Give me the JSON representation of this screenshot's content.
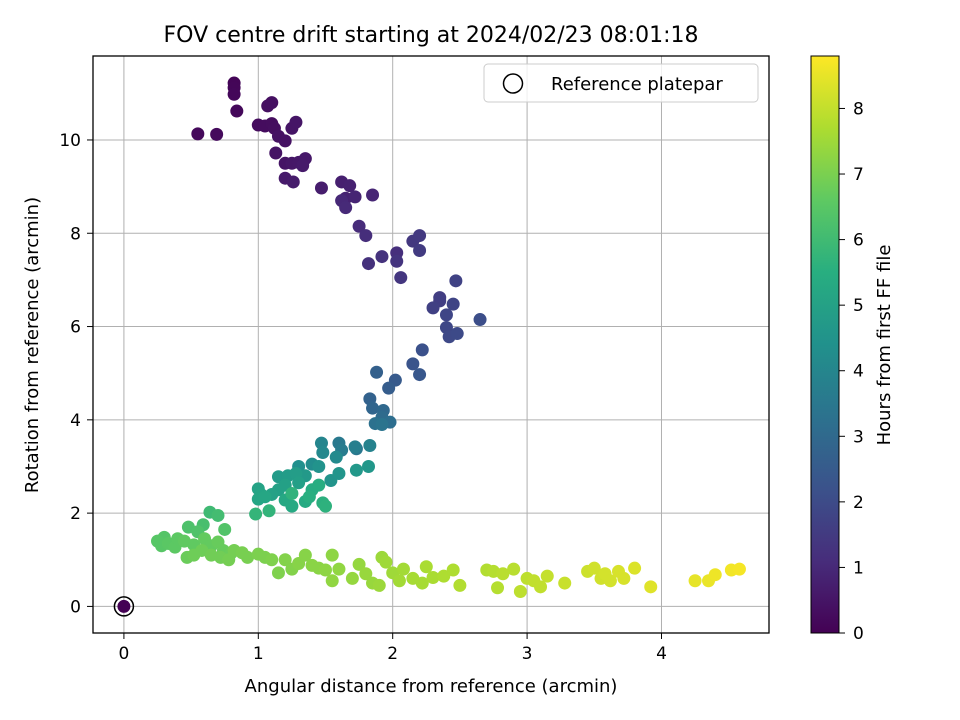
{
  "chart_data": {
    "type": "scatter",
    "title": "FOV centre drift starting at 2024/02/23 08:01:18",
    "xlabel": "Angular distance from reference (arcmin)",
    "ylabel": "Rotation from reference (arcmin)",
    "xlim": [
      -0.23,
      4.8
    ],
    "ylim": [
      -0.57,
      11.8
    ],
    "xticks": [
      "0",
      "1",
      "2",
      "3",
      "4"
    ],
    "yticks": [
      "0",
      "2",
      "4",
      "6",
      "8",
      "10"
    ],
    "grid": true,
    "legend": {
      "placement": "top-right",
      "entries": [
        "Reference platepar"
      ]
    },
    "reference_point": {
      "x": 0,
      "y": 0,
      "hours": 0
    },
    "colorbar": {
      "label": "Hours from first FF file",
      "range": [
        0,
        8.8
      ],
      "ticks": [
        "0",
        "1",
        "2",
        "3",
        "4",
        "5",
        "6",
        "7",
        "8"
      ],
      "colormap": "viridis"
    },
    "points": [
      [
        0.82,
        11.22,
        0.1
      ],
      [
        0.82,
        11.12,
        0.12
      ],
      [
        0.82,
        10.98,
        0.15
      ],
      [
        0.84,
        10.62,
        0.18
      ],
      [
        0.55,
        10.13,
        0.2
      ],
      [
        0.69,
        10.12,
        0.22
      ],
      [
        1.0,
        10.32,
        0.25
      ],
      [
        1.05,
        10.3,
        0.28
      ],
      [
        1.1,
        10.35,
        0.3
      ],
      [
        1.12,
        10.25,
        0.33
      ],
      [
        1.07,
        10.73,
        0.35
      ],
      [
        1.1,
        10.8,
        0.37
      ],
      [
        1.15,
        10.08,
        0.4
      ],
      [
        1.2,
        9.98,
        0.42
      ],
      [
        1.13,
        9.72,
        0.45
      ],
      [
        1.2,
        9.5,
        0.48
      ],
      [
        1.25,
        10.25,
        0.5
      ],
      [
        1.28,
        10.38,
        0.52
      ],
      [
        1.25,
        9.5,
        0.55
      ],
      [
        1.3,
        9.52,
        0.58
      ],
      [
        1.35,
        9.6,
        0.6
      ],
      [
        1.33,
        9.45,
        0.63
      ],
      [
        1.2,
        9.18,
        0.65
      ],
      [
        1.26,
        9.1,
        0.68
      ],
      [
        1.47,
        8.97,
        0.72
      ],
      [
        1.62,
        9.1,
        0.78
      ],
      [
        1.68,
        9.02,
        0.82
      ],
      [
        1.65,
        8.75,
        0.85
      ],
      [
        1.72,
        8.78,
        0.9
      ],
      [
        1.85,
        8.82,
        0.95
      ],
      [
        1.62,
        8.7,
        1.0
      ],
      [
        1.65,
        8.55,
        1.05
      ],
      [
        1.75,
        8.15,
        1.1
      ],
      [
        1.8,
        7.95,
        1.15
      ],
      [
        2.03,
        7.58,
        1.2
      ],
      [
        1.82,
        7.35,
        1.25
      ],
      [
        1.92,
        7.5,
        1.3
      ],
      [
        2.03,
        7.4,
        1.35
      ],
      [
        2.06,
        7.05,
        1.4
      ],
      [
        2.15,
        7.83,
        1.45
      ],
      [
        2.2,
        7.95,
        1.5
      ],
      [
        2.2,
        7.63,
        1.55
      ],
      [
        2.35,
        6.62,
        1.6
      ],
      [
        2.35,
        6.55,
        1.65
      ],
      [
        2.3,
        6.4,
        1.7
      ],
      [
        2.47,
        6.98,
        1.75
      ],
      [
        2.45,
        6.48,
        1.8
      ],
      [
        2.4,
        6.25,
        1.85
      ],
      [
        2.4,
        5.98,
        1.9
      ],
      [
        2.42,
        5.78,
        1.95
      ],
      [
        2.48,
        5.85,
        2.0
      ],
      [
        2.65,
        6.15,
        2.1
      ],
      [
        2.22,
        5.5,
        2.2
      ],
      [
        2.15,
        5.2,
        2.3
      ],
      [
        2.2,
        4.97,
        2.4
      ],
      [
        2.02,
        4.85,
        2.5
      ],
      [
        1.97,
        4.68,
        2.6
      ],
      [
        1.88,
        5.02,
        2.7
      ],
      [
        1.83,
        4.45,
        2.8
      ],
      [
        1.85,
        4.25,
        2.9
      ],
      [
        1.93,
        4.2,
        3.0
      ],
      [
        1.92,
        4.05,
        3.1
      ],
      [
        1.98,
        3.95,
        3.2
      ],
      [
        1.87,
        3.92,
        3.3
      ],
      [
        1.92,
        3.9,
        3.4
      ],
      [
        1.73,
        3.38,
        3.5
      ],
      [
        1.6,
        3.5,
        3.6
      ],
      [
        1.62,
        3.35,
        3.7
      ],
      [
        1.72,
        3.42,
        3.8
      ],
      [
        1.83,
        3.45,
        3.9
      ],
      [
        1.47,
        3.5,
        4.0
      ],
      [
        1.48,
        3.3,
        4.1
      ],
      [
        1.58,
        3.2,
        4.2
      ],
      [
        1.4,
        3.05,
        4.3
      ],
      [
        1.3,
        3.0,
        4.4
      ],
      [
        1.45,
        3.0,
        4.5
      ],
      [
        1.54,
        2.7,
        4.55
      ],
      [
        1.6,
        2.85,
        4.6
      ],
      [
        1.82,
        3.0,
        4.65
      ],
      [
        1.73,
        2.92,
        4.7
      ],
      [
        1.35,
        2.8,
        4.75
      ],
      [
        1.15,
        2.78,
        4.8
      ],
      [
        1.22,
        2.8,
        4.85
      ],
      [
        1.28,
        2.85,
        4.9
      ],
      [
        1.3,
        2.65,
        4.95
      ],
      [
        1.2,
        2.6,
        5.0
      ],
      [
        1.15,
        2.5,
        5.0
      ],
      [
        1.1,
        2.4,
        5.05
      ],
      [
        1.0,
        2.52,
        5.1
      ],
      [
        1.02,
        2.4,
        5.15
      ],
      [
        1.0,
        2.3,
        5.2
      ],
      [
        1.05,
        2.35,
        5.25
      ],
      [
        1.2,
        2.28,
        5.3
      ],
      [
        1.25,
        2.15,
        5.35
      ],
      [
        1.35,
        2.25,
        5.4
      ],
      [
        1.4,
        2.5,
        5.45
      ],
      [
        1.45,
        2.6,
        5.5
      ],
      [
        1.38,
        2.35,
        5.55
      ],
      [
        1.48,
        2.22,
        5.6
      ],
      [
        1.5,
        2.15,
        5.65
      ],
      [
        1.25,
        2.42,
        5.7
      ],
      [
        1.08,
        2.05,
        5.75
      ],
      [
        0.98,
        1.98,
        5.8
      ],
      [
        0.64,
        2.02,
        6.0
      ],
      [
        0.7,
        1.95,
        6.1
      ],
      [
        0.59,
        1.75,
        6.2
      ],
      [
        0.48,
        1.7,
        6.3
      ],
      [
        0.55,
        1.6,
        6.35
      ],
      [
        0.75,
        1.65,
        6.4
      ],
      [
        0.3,
        1.48,
        6.45
      ],
      [
        0.25,
        1.4,
        6.5
      ],
      [
        0.28,
        1.3,
        6.5
      ],
      [
        0.33,
        1.35,
        6.55
      ],
      [
        0.38,
        1.27,
        6.6
      ],
      [
        0.4,
        1.45,
        6.6
      ],
      [
        0.45,
        1.4,
        6.65
      ],
      [
        0.52,
        1.32,
        6.65
      ],
      [
        0.6,
        1.45,
        6.7
      ],
      [
        0.65,
        1.3,
        6.7
      ],
      [
        0.7,
        1.38,
        6.75
      ],
      [
        0.74,
        1.2,
        6.75
      ],
      [
        0.8,
        1.15,
        6.8
      ],
      [
        0.47,
        1.05,
        6.8
      ],
      [
        0.52,
        1.1,
        6.85
      ],
      [
        0.58,
        1.2,
        6.85
      ],
      [
        0.65,
        1.1,
        6.9
      ],
      [
        0.72,
        1.05,
        6.9
      ],
      [
        0.78,
        1.0,
        6.95
      ],
      [
        0.82,
        1.2,
        6.95
      ],
      [
        0.88,
        1.15,
        7.0
      ],
      [
        0.92,
        1.05,
        7.0
      ],
      [
        1.0,
        1.12,
        7.05
      ],
      [
        1.05,
        1.05,
        7.05
      ],
      [
        1.1,
        1.0,
        7.1
      ],
      [
        1.15,
        0.72,
        7.1
      ],
      [
        1.2,
        1.0,
        7.15
      ],
      [
        1.25,
        0.8,
        7.15
      ],
      [
        1.3,
        0.92,
        7.2
      ],
      [
        1.35,
        1.1,
        7.2
      ],
      [
        1.4,
        0.88,
        7.25
      ],
      [
        1.45,
        0.82,
        7.25
      ],
      [
        1.5,
        0.78,
        7.3
      ],
      [
        1.55,
        1.1,
        7.3
      ],
      [
        1.6,
        0.8,
        7.35
      ],
      [
        1.55,
        0.55,
        7.35
      ],
      [
        1.7,
        0.6,
        7.4
      ],
      [
        1.75,
        0.9,
        7.4
      ],
      [
        1.8,
        0.7,
        7.45
      ],
      [
        1.85,
        0.5,
        7.45
      ],
      [
        1.9,
        0.45,
        7.5
      ],
      [
        1.92,
        1.05,
        7.5
      ],
      [
        1.95,
        0.95,
        7.55
      ],
      [
        2.0,
        0.72,
        7.55
      ],
      [
        2.05,
        0.55,
        7.6
      ],
      [
        2.08,
        0.8,
        7.6
      ],
      [
        2.15,
        0.6,
        7.65
      ],
      [
        2.22,
        0.5,
        7.65
      ],
      [
        2.25,
        0.85,
        7.7
      ],
      [
        2.3,
        0.62,
        7.7
      ],
      [
        2.38,
        0.65,
        7.75
      ],
      [
        2.45,
        0.78,
        7.75
      ],
      [
        2.5,
        0.45,
        7.8
      ],
      [
        2.7,
        0.78,
        7.8
      ],
      [
        2.75,
        0.75,
        7.85
      ],
      [
        2.78,
        0.4,
        7.85
      ],
      [
        2.82,
        0.7,
        7.9
      ],
      [
        2.9,
        0.8,
        7.9
      ],
      [
        2.95,
        0.32,
        7.95
      ],
      [
        3.0,
        0.6,
        7.95
      ],
      [
        3.05,
        0.55,
        8.0
      ],
      [
        3.1,
        0.42,
        8.0
      ],
      [
        3.15,
        0.65,
        8.05
      ],
      [
        3.28,
        0.5,
        8.1
      ],
      [
        3.45,
        0.75,
        8.15
      ],
      [
        3.5,
        0.82,
        8.2
      ],
      [
        3.55,
        0.6,
        8.2
      ],
      [
        3.58,
        0.7,
        8.25
      ],
      [
        3.62,
        0.55,
        8.25
      ],
      [
        3.68,
        0.75,
        8.3
      ],
      [
        3.72,
        0.6,
        8.3
      ],
      [
        3.8,
        0.82,
        8.35
      ],
      [
        3.92,
        0.42,
        8.4
      ],
      [
        4.25,
        0.55,
        8.5
      ],
      [
        4.35,
        0.55,
        8.55
      ],
      [
        4.4,
        0.68,
        8.6
      ],
      [
        4.52,
        0.78,
        8.65
      ],
      [
        4.58,
        0.8,
        8.7
      ]
    ]
  }
}
